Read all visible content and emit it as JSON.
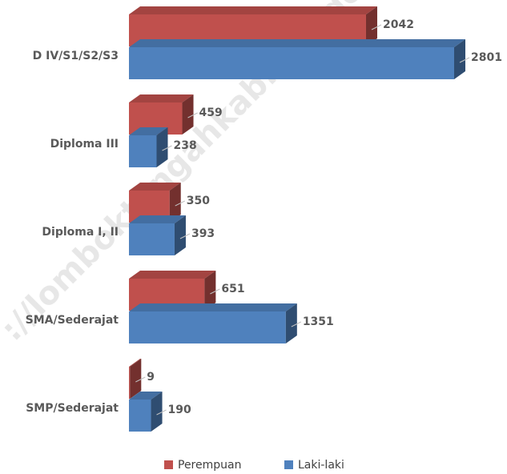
{
  "chart_data": {
    "type": "bar3d_horizontal",
    "categories": [
      "D IV/S1/S2/S3",
      "Diploma III",
      "Diploma I, II",
      "SMA/Sederajat",
      "SMP/Sederajat"
    ],
    "series": [
      {
        "name": "Perempuan",
        "color": "#c0504d",
        "values": [
          2042,
          459,
          350,
          651,
          9
        ]
      },
      {
        "name": "Laki-laki",
        "color": "#4f81bd",
        "values": [
          2801,
          238,
          393,
          1351,
          190
        ]
      }
    ],
    "watermark": "://lomboktengahkab.bps.go.id",
    "legend": "bottom"
  }
}
